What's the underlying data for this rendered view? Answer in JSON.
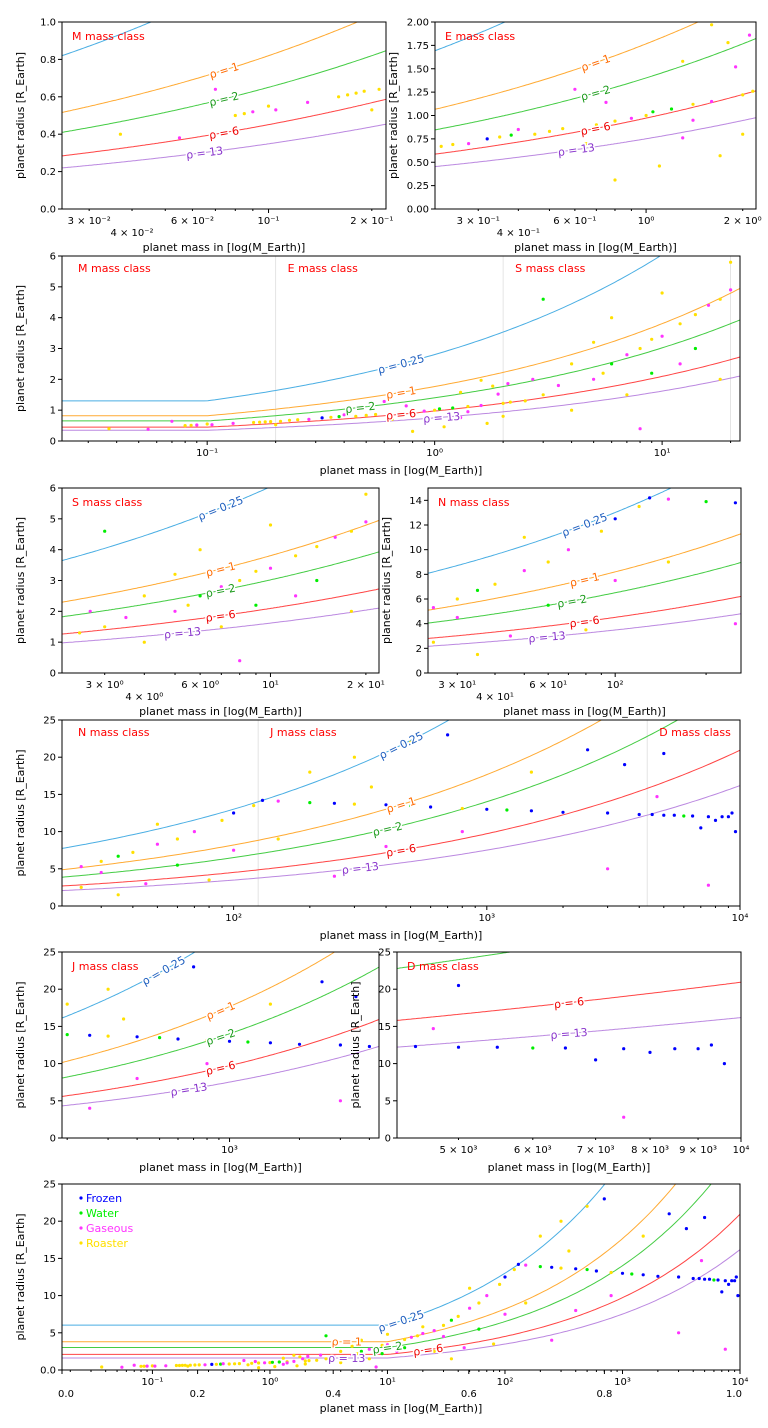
{
  "chart_data": {
    "type": "scatter",
    "x_scale": "log",
    "xlabel": "planet mass in [log(M_Earth)]",
    "ylabel": "planet radius [R_Earth]",
    "legend": {
      "placement": "top-left",
      "panel": 9,
      "entries": [
        {
          "name": "Frozen",
          "key": "F",
          "color": "#0000ff"
        },
        {
          "name": "Water",
          "key": "W",
          "color": "#00ee00"
        },
        {
          "name": "Gaseous",
          "key": "G",
          "color": "#ff33ff"
        },
        {
          "name": "Roaster",
          "key": "R",
          "color": "#ffe000"
        }
      ]
    },
    "density_curves": [
      {
        "label": "ρ = 0.25",
        "rho": 0.25,
        "line_color": "#4aaee3",
        "label_color": "#1f5fbf"
      },
      {
        "label": "ρ = 1",
        "rho": 1,
        "line_color": "#ffaa33",
        "label_color": "#ff6a00"
      },
      {
        "label": "ρ = 2",
        "rho": 2,
        "line_color": "#44cc44",
        "label_color": "#1a9a1a"
      },
      {
        "label": "ρ = 6",
        "rho": 6,
        "line_color": "#ff4444",
        "label_color": "#ee0000"
      },
      {
        "label": "ρ = 13",
        "rho": 13,
        "line_color": "#bb88e0",
        "label_color": "#8833cc"
      }
    ],
    "class_boundaries": [
      0.2,
      2,
      20,
      125,
      4300
    ],
    "points": [
      [
        0.037,
        0.4,
        "R"
      ],
      [
        0.055,
        0.38,
        "G"
      ],
      [
        0.07,
        0.64,
        "G"
      ],
      [
        0.08,
        0.5,
        "R"
      ],
      [
        0.085,
        0.51,
        "R"
      ],
      [
        0.09,
        0.52,
        "G"
      ],
      [
        0.1,
        0.55,
        "R"
      ],
      [
        0.105,
        0.53,
        "G"
      ],
      [
        0.13,
        0.57,
        "G"
      ],
      [
        0.16,
        0.6,
        "R"
      ],
      [
        0.17,
        0.61,
        "R"
      ],
      [
        0.18,
        0.62,
        "R"
      ],
      [
        0.19,
        0.63,
        "R"
      ],
      [
        0.2,
        0.53,
        "R"
      ],
      [
        0.21,
        0.64,
        "R"
      ],
      [
        0.23,
        0.67,
        "R"
      ],
      [
        0.25,
        0.69,
        "R"
      ],
      [
        0.28,
        0.7,
        "G"
      ],
      [
        0.32,
        0.75,
        "F"
      ],
      [
        0.35,
        0.77,
        "R"
      ],
      [
        0.38,
        0.79,
        "W"
      ],
      [
        0.4,
        0.85,
        "G"
      ],
      [
        0.45,
        0.8,
        "R"
      ],
      [
        0.5,
        0.83,
        "R"
      ],
      [
        0.55,
        0.86,
        "R"
      ],
      [
        0.6,
        1.28,
        "G"
      ],
      [
        0.65,
        0.7,
        "R"
      ],
      [
        0.7,
        0.9,
        "R"
      ],
      [
        0.75,
        1.14,
        "G"
      ],
      [
        0.8,
        0.31,
        "R"
      ],
      [
        0.8,
        0.94,
        "R"
      ],
      [
        0.9,
        0.97,
        "G"
      ],
      [
        1.0,
        1.0,
        "R"
      ],
      [
        1.05,
        1.04,
        "W"
      ],
      [
        1.1,
        0.46,
        "R"
      ],
      [
        1.2,
        1.07,
        "W"
      ],
      [
        1.3,
        1.58,
        "R"
      ],
      [
        1.3,
        0.76,
        "G"
      ],
      [
        1.4,
        1.12,
        "R"
      ],
      [
        1.4,
        0.95,
        "G"
      ],
      [
        1.6,
        1.97,
        "R"
      ],
      [
        1.6,
        1.15,
        "G"
      ],
      [
        1.7,
        0.57,
        "R"
      ],
      [
        1.8,
        1.78,
        "R"
      ],
      [
        1.9,
        1.52,
        "G"
      ],
      [
        2.0,
        0.8,
        "R"
      ],
      [
        2.0,
        1.22,
        "R"
      ],
      [
        2.1,
        1.86,
        "G"
      ],
      [
        2.15,
        1.26,
        "R"
      ],
      [
        2.5,
        1.3,
        "R"
      ],
      [
        2.7,
        2.0,
        "G"
      ],
      [
        3.0,
        1.5,
        "R"
      ],
      [
        3.0,
        4.6,
        "W"
      ],
      [
        3.5,
        1.8,
        "G"
      ],
      [
        4,
        2.5,
        "R"
      ],
      [
        4,
        1.0,
        "R"
      ],
      [
        5,
        2.0,
        "G"
      ],
      [
        5,
        3.2,
        "R"
      ],
      [
        5.5,
        2.2,
        "R"
      ],
      [
        6,
        2.5,
        "W"
      ],
      [
        6,
        4.0,
        "R"
      ],
      [
        7,
        2.8,
        "G"
      ],
      [
        7,
        1.5,
        "R"
      ],
      [
        8,
        3.0,
        "R"
      ],
      [
        8,
        0.4,
        "G"
      ],
      [
        9,
        3.3,
        "R"
      ],
      [
        9,
        2.2,
        "W"
      ],
      [
        10,
        3.4,
        "G"
      ],
      [
        10,
        4.8,
        "R"
      ],
      [
        12,
        3.8,
        "R"
      ],
      [
        12,
        2.5,
        "G"
      ],
      [
        14,
        4.1,
        "R"
      ],
      [
        14,
        3.0,
        "W"
      ],
      [
        16,
        4.4,
        "G"
      ],
      [
        18,
        4.6,
        "R"
      ],
      [
        18,
        2.0,
        "R"
      ],
      [
        20,
        4.9,
        "G"
      ],
      [
        20,
        5.8,
        "R"
      ],
      [
        25,
        5.3,
        "G"
      ],
      [
        25,
        2.5,
        "R"
      ],
      [
        30,
        6.0,
        "R"
      ],
      [
        30,
        4.5,
        "G"
      ],
      [
        35,
        6.7,
        "W"
      ],
      [
        35,
        1.5,
        "R"
      ],
      [
        40,
        7.2,
        "R"
      ],
      [
        45,
        3.0,
        "G"
      ],
      [
        50,
        8.3,
        "G"
      ],
      [
        50,
        11,
        "R"
      ],
      [
        60,
        9.0,
        "R"
      ],
      [
        60,
        5.5,
        "W"
      ],
      [
        70,
        10.0,
        "G"
      ],
      [
        80,
        3.5,
        "R"
      ],
      [
        90,
        11.5,
        "R"
      ],
      [
        100,
        12.5,
        "F"
      ],
      [
        100,
        7.5,
        "G"
      ],
      [
        120,
        13.5,
        "R"
      ],
      [
        130,
        14.2,
        "F"
      ],
      [
        150,
        14.1,
        "G"
      ],
      [
        150,
        9,
        "R"
      ],
      [
        200,
        13.9,
        "W"
      ],
      [
        200,
        18,
        "R"
      ],
      [
        250,
        13.8,
        "F"
      ],
      [
        250,
        4,
        "G"
      ],
      [
        300,
        13.7,
        "R"
      ],
      [
        300,
        20,
        "R"
      ],
      [
        350,
        16,
        "R"
      ],
      [
        400,
        13.6,
        "F"
      ],
      [
        400,
        8,
        "G"
      ],
      [
        500,
        13.5,
        "W"
      ],
      [
        500,
        22,
        "R"
      ],
      [
        600,
        13.3,
        "F"
      ],
      [
        700,
        23,
        "F"
      ],
      [
        800,
        13.1,
        "R"
      ],
      [
        800,
        10,
        "G"
      ],
      [
        1000,
        13.0,
        "F"
      ],
      [
        1200,
        12.9,
        "W"
      ],
      [
        1500,
        12.8,
        "F"
      ],
      [
        1500,
        18,
        "R"
      ],
      [
        2000,
        12.6,
        "F"
      ],
      [
        2500,
        21,
        "F"
      ],
      [
        3000,
        12.5,
        "F"
      ],
      [
        3000,
        5,
        "G"
      ],
      [
        3500,
        19,
        "F"
      ],
      [
        4000,
        12.3,
        "F"
      ],
      [
        4500,
        12.3,
        "F"
      ],
      [
        4700,
        14.7,
        "G"
      ],
      [
        5000,
        20.5,
        "F"
      ],
      [
        5000,
        12.2,
        "F"
      ],
      [
        5500,
        12.2,
        "F"
      ],
      [
        6000,
        12.1,
        "W"
      ],
      [
        6500,
        12.1,
        "F"
      ],
      [
        7000,
        10.5,
        "F"
      ],
      [
        7500,
        12,
        "F"
      ],
      [
        7500,
        2.8,
        "G"
      ],
      [
        8000,
        11.5,
        "F"
      ],
      [
        8500,
        12,
        "F"
      ],
      [
        9000,
        12,
        "F"
      ],
      [
        9300,
        12.5,
        "F"
      ],
      [
        9600,
        10,
        "F"
      ]
    ],
    "panels": [
      {
        "classes": [
          "M mass class"
        ],
        "xlim": [
          0.025,
          0.22
        ],
        "ylim": [
          0,
          1.0
        ],
        "yticks": [
          "0.0",
          "0.2",
          "0.4",
          "0.6",
          "0.8",
          "1.0"
        ],
        "ytick_values": [
          0,
          0.2,
          0.4,
          0.6,
          0.8,
          1.0
        ],
        "xticks": [
          [
            0.03,
            "3 × 10⁻²"
          ],
          [
            0.04,
            "4 × 10⁻²"
          ],
          [
            0.06,
            "6 × 10⁻²"
          ],
          [
            0.1,
            "10⁻¹"
          ],
          [
            0.2,
            "2 × 10⁻¹"
          ]
        ]
      },
      {
        "classes": [
          "E mass class"
        ],
        "xlim": [
          0.22,
          2.2
        ],
        "ylim": [
          0,
          2.0
        ],
        "yticks": [
          "0.00",
          "0.25",
          "0.50",
          "0.75",
          "1.00",
          "1.25",
          "1.50",
          "1.75",
          "2.00"
        ],
        "ytick_values": [
          0,
          0.25,
          0.5,
          0.75,
          1,
          1.25,
          1.5,
          1.75,
          2
        ],
        "xticks": [
          [
            0.3,
            "3 × 10⁻¹"
          ],
          [
            0.4,
            "4 × 10⁻¹"
          ],
          [
            0.6,
            "6 × 10⁻¹"
          ],
          [
            1,
            "10⁰"
          ],
          [
            2,
            "2 × 10⁰"
          ]
        ]
      },
      {
        "classes": [
          "M mass class",
          "E mass class",
          "S mass class"
        ],
        "xlim": [
          0.023,
          22
        ],
        "ylim": [
          0,
          6
        ],
        "flat_below": 0.1,
        "yticks": [
          "0",
          "1",
          "2",
          "3",
          "4",
          "5",
          "6"
        ],
        "ytick_values": [
          0,
          1,
          2,
          3,
          4,
          5,
          6
        ],
        "xticks": [
          [
            0.1,
            "10⁻¹"
          ],
          [
            1,
            "10⁰"
          ],
          [
            10,
            "10¹"
          ]
        ]
      },
      {
        "classes": [
          "S mass class"
        ],
        "xlim": [
          2.2,
          22
        ],
        "ylim": [
          0,
          6
        ],
        "yticks": [
          "0",
          "1",
          "2",
          "3",
          "4",
          "5",
          "6"
        ],
        "ytick_values": [
          0,
          1,
          2,
          3,
          4,
          5,
          6
        ],
        "xticks": [
          [
            3,
            "3 × 10⁰"
          ],
          [
            4,
            "4 × 10⁰"
          ],
          [
            6,
            "6 × 10⁰"
          ],
          [
            10,
            "10¹"
          ],
          [
            20,
            "2 × 10¹"
          ]
        ]
      },
      {
        "classes": [
          "N mass class"
        ],
        "xlim": [
          24,
          261
        ],
        "ylim": [
          0,
          15
        ],
        "yticks": [
          "0",
          "2",
          "4",
          "6",
          "8",
          "10",
          "12",
          "14"
        ],
        "ytick_values": [
          0,
          2,
          4,
          6,
          8,
          10,
          12,
          14
        ],
        "xticks": [
          [
            30,
            "3 × 10¹"
          ],
          [
            40,
            "4 × 10¹"
          ],
          [
            60,
            "6 × 10¹"
          ],
          [
            100,
            "10²"
          ]
        ]
      },
      {
        "classes": [
          "N mass class",
          "J mass class",
          "D mass class"
        ],
        "xlim": [
          21,
          10000
        ],
        "ylim": [
          0,
          25
        ],
        "yticks": [
          "0",
          "5",
          "10",
          "15",
          "20",
          "25"
        ],
        "ytick_values": [
          0,
          5,
          10,
          15,
          20,
          25
        ],
        "xticks": [
          [
            100,
            "10²"
          ],
          [
            1000,
            "10³"
          ],
          [
            10000,
            "10⁴"
          ]
        ]
      },
      {
        "classes": [
          "J mass class"
        ],
        "xlim": [
          190,
          4400
        ],
        "ylim": [
          0,
          25
        ],
        "yticks": [
          "0",
          "5",
          "10",
          "15",
          "20",
          "25"
        ],
        "ytick_values": [
          0,
          5,
          10,
          15,
          20,
          25
        ],
        "xticks": [
          [
            1000,
            "10³"
          ]
        ]
      },
      {
        "classes": [
          "D mass class"
        ],
        "xlim": [
          4300,
          10000
        ],
        "ylim": [
          0,
          25
        ],
        "yticks": [
          "0",
          "5",
          "10",
          "15",
          "20",
          "25"
        ],
        "ytick_values": [
          0,
          5,
          10,
          15,
          20,
          25
        ],
        "xticks": [
          [
            5000,
            "5 × 10³"
          ],
          [
            6000,
            "6 × 10³"
          ],
          [
            7000,
            "7 × 10³"
          ],
          [
            8000,
            "8 × 10³"
          ],
          [
            9000,
            "9 × 10³"
          ],
          [
            10000,
            "10⁴"
          ]
        ]
      },
      {
        "classes": [],
        "xlim": [
          0.017,
          10000
        ],
        "ylim": [
          0,
          25
        ],
        "flat_below": 10,
        "legend": true,
        "yticks": [
          "0.0",
          "5",
          "10",
          "15",
          "20",
          "25"
        ],
        "ytick_values": [
          0,
          5,
          10,
          15,
          20,
          25
        ],
        "xticks": [
          [
            0.1,
            "10⁻¹"
          ],
          [
            1,
            "10⁰"
          ],
          [
            10,
            "10¹"
          ],
          [
            100,
            "10²"
          ],
          [
            1000,
            "10³"
          ],
          [
            10000,
            "10⁴"
          ]
        ],
        "linear_xticks": [
          "0.0",
          "0.2",
          "0.4",
          "0.6",
          "0.8",
          "1.0"
        ]
      }
    ]
  }
}
